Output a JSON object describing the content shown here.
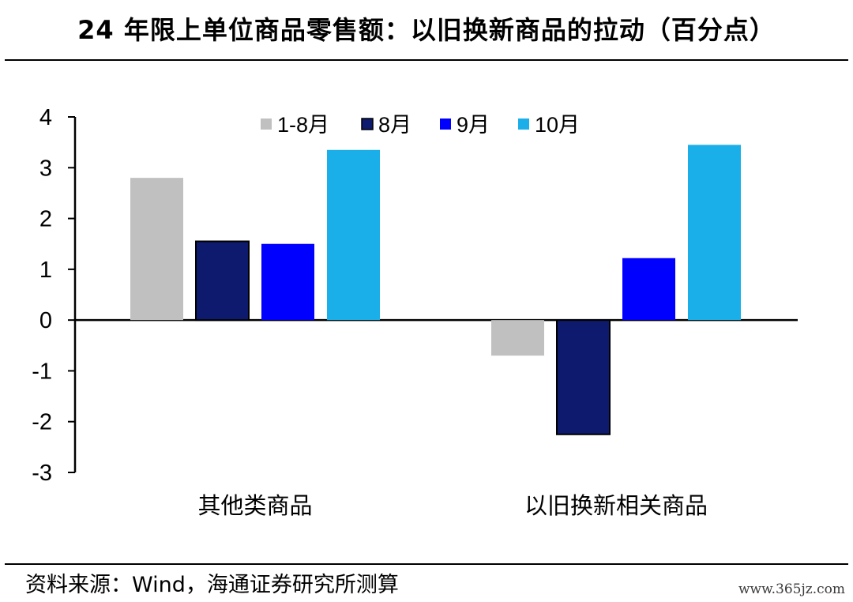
{
  "header": {
    "title": "24 年限上单位商品零售额：以旧换新商品的拉动（百分点）"
  },
  "footer": {
    "source": "资料来源：Wind，海通证券研究所测算",
    "watermark": "www.365jz.com"
  },
  "chart_data": {
    "type": "bar",
    "title": "24 年限上单位商品零售额：以旧换新商品的拉动（百分点）",
    "xlabel": "",
    "ylabel": "",
    "categories": [
      "其他类商品",
      "以旧换新相关商品"
    ],
    "series": [
      {
        "name": "1-8月",
        "color": "#c0c0c0",
        "values": [
          2.8,
          -0.7
        ]
      },
      {
        "name": "8月",
        "color": "#0d1a6e",
        "values": [
          1.55,
          -2.25
        ]
      },
      {
        "name": "9月",
        "color": "#0000ff",
        "values": [
          1.5,
          1.22
        ]
      },
      {
        "name": "10月",
        "color": "#1aafe8",
        "values": [
          3.35,
          3.45
        ]
      }
    ],
    "ylim": [
      -3,
      4
    ],
    "yticks": [
      4,
      3,
      2,
      1,
      0,
      -1,
      -2,
      -3
    ],
    "grid": false,
    "legend_position": "top"
  }
}
